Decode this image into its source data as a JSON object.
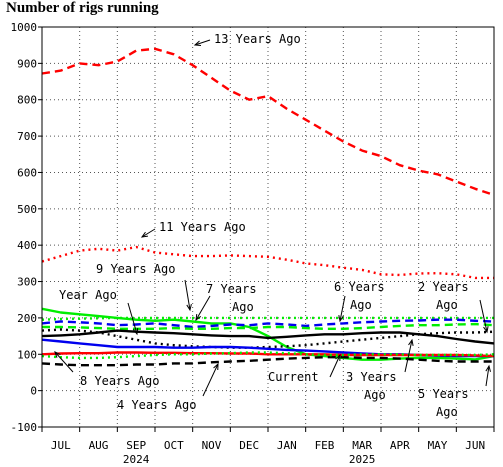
{
  "page_title": "Number of rigs running",
  "chart_data": {
    "type": "line",
    "title": "Number of rigs running",
    "xlabel": "",
    "ylabel": "",
    "ylim": [
      -100,
      1000
    ],
    "yticks": [
      -100,
      0,
      100,
      200,
      300,
      400,
      500,
      600,
      700,
      800,
      900,
      1000
    ],
    "xlim": [
      0,
      12
    ],
    "month_ticks": [
      "JUL",
      "AUG",
      "SEP",
      "OCT",
      "NOV",
      "DEC",
      "JAN",
      "FEB",
      "MAR",
      "APR",
      "MAY",
      "JUN"
    ],
    "year_ticks": [
      {
        "label": "2024",
        "month_index": 2.5
      },
      {
        "label": "2025",
        "month_index": 8.5
      }
    ],
    "grid": true,
    "legend": "none (direct labels)",
    "series": [
      {
        "name": "13 Years Ago",
        "color": "#ff0000",
        "dash": "8,5",
        "width": 2.4,
        "x": [
          0,
          0.5,
          1,
          1.5,
          2,
          2.5,
          3,
          3.5,
          4,
          4.5,
          5,
          5.5,
          6,
          6.5,
          7,
          7.5,
          8,
          8.5,
          9,
          9.5,
          10,
          10.5,
          11,
          11.5,
          12
        ],
        "values": [
          872,
          880,
          900,
          895,
          905,
          935,
          940,
          925,
          895,
          860,
          825,
          800,
          810,
          775,
          745,
          715,
          685,
          660,
          645,
          620,
          605,
          595,
          575,
          555,
          538
        ]
      },
      {
        "name": "11 Years Ago",
        "color": "#ff0000",
        "dash": "2,4",
        "width": 2.4,
        "x": [
          0,
          0.5,
          1,
          1.5,
          2,
          2.5,
          3,
          3.5,
          4,
          4.5,
          5,
          5.5,
          6,
          6.5,
          7,
          7.5,
          8,
          8.5,
          9,
          9.5,
          10,
          10.5,
          11,
          11.5,
          12
        ],
        "values": [
          355,
          370,
          385,
          390,
          385,
          395,
          380,
          375,
          370,
          370,
          372,
          370,
          368,
          360,
          350,
          345,
          338,
          332,
          320,
          318,
          322,
          323,
          320,
          310,
          310
        ]
      },
      {
        "name": "9 Years Ago",
        "color": "#00ee00",
        "dash": "",
        "width": 2.4,
        "x": [
          0,
          0.5,
          1,
          1.5,
          2,
          2.5,
          3,
          3.5,
          4,
          4.5,
          5,
          5.5,
          6,
          6.5,
          7,
          7.5,
          8,
          8.5,
          9,
          9.5,
          10,
          10.5,
          11,
          11.5,
          12
        ],
        "values": [
          225,
          215,
          210,
          205,
          200,
          195,
          192,
          195,
          190,
          185,
          185,
          175,
          150,
          120,
          100,
          95,
          90,
          85,
          85,
          88,
          90,
          90,
          88,
          86,
          95
        ]
      },
      {
        "name": "7 Years Ago",
        "color": "#00ee00",
        "dash": "2,4",
        "width": 2.4,
        "x": [
          0,
          0.5,
          1,
          1.5,
          2,
          2.5,
          3,
          3.5,
          4,
          4.5,
          5,
          5.5,
          6,
          6.5,
          7,
          7.5,
          8,
          8.5,
          9,
          9.5,
          10,
          10.5,
          11,
          11.5,
          12
        ],
        "values": [
          195,
          197,
          198,
          199,
          200,
          200,
          200,
          200,
          200,
          200,
          200,
          200,
          200,
          200,
          200,
          200,
          200,
          200,
          200,
          200,
          200,
          200,
          200,
          200,
          200
        ]
      },
      {
        "name": "6 Years Ago",
        "color": "#0000ee",
        "dash": "8,5",
        "width": 2.4,
        "x": [
          0,
          0.5,
          1,
          1.5,
          2,
          2.5,
          3,
          3.5,
          4,
          4.5,
          5,
          5.5,
          6,
          6.5,
          7,
          7.5,
          8,
          8.5,
          9,
          9.5,
          10,
          10.5,
          11,
          11.5,
          12
        ],
        "values": [
          185,
          190,
          188,
          185,
          180,
          182,
          185,
          180,
          175,
          178,
          182,
          180,
          185,
          182,
          178,
          182,
          185,
          188,
          190,
          192,
          193,
          195,
          195,
          192,
          190
        ]
      },
      {
        "name": "2 Years Ago",
        "color": "#00ee00",
        "dash": "8,5",
        "width": 2.4,
        "x": [
          0,
          0.5,
          1,
          1.5,
          2,
          2.5,
          3,
          3.5,
          4,
          4.5,
          5,
          5.5,
          6,
          6.5,
          7,
          7.5,
          8,
          8.5,
          9,
          9.5,
          10,
          10.5,
          11,
          11.5,
          12
        ],
        "values": [
          175,
          175,
          174,
          172,
          170,
          170,
          170,
          172,
          170,
          170,
          172,
          172,
          175,
          175,
          172,
          170,
          170,
          172,
          175,
          178,
          180,
          180,
          182,
          183,
          180
        ]
      },
      {
        "name": "Year Ago",
        "color": "#000000",
        "dash": "",
        "width": 2.4,
        "x": [
          0,
          0.5,
          1,
          1.5,
          2,
          2.5,
          3,
          3.5,
          4,
          4.5,
          5,
          5.5,
          6,
          6.5,
          7,
          7.5,
          8,
          8.5,
          9,
          9.5,
          10,
          10.5,
          11,
          11.5,
          12
        ],
        "values": [
          150,
          152,
          155,
          160,
          165,
          162,
          160,
          158,
          155,
          152,
          150,
          150,
          145,
          148,
          152,
          155,
          155,
          158,
          160,
          160,
          155,
          150,
          142,
          135,
          130
        ]
      },
      {
        "name": "8 Years Ago",
        "color": "#000000",
        "dash": "2,4",
        "width": 2.4,
        "x": [
          0,
          0.5,
          1,
          1.5,
          2,
          2.5,
          3,
          3.5,
          4,
          4.5,
          5,
          5.5,
          6,
          6.5,
          7,
          7.5,
          8,
          8.5,
          9,
          9.5,
          10,
          10.5,
          11,
          11.5,
          12
        ],
        "values": [
          165,
          168,
          165,
          160,
          150,
          140,
          130,
          125,
          122,
          120,
          118,
          118,
          120,
          122,
          125,
          130,
          135,
          140,
          145,
          150,
          155,
          158,
          160,
          160,
          162
        ]
      },
      {
        "name": "5 Years Ago",
        "color": "#0000ee",
        "dash": "",
        "width": 2.4,
        "x": [
          0,
          0.5,
          1,
          1.5,
          2,
          2.5,
          3,
          3.5,
          4,
          4.5,
          5,
          5.5,
          6,
          6.5,
          7,
          7.5,
          8,
          8.5,
          9,
          9.5,
          10,
          10.5,
          11,
          11.5,
          12
        ],
        "values": [
          140,
          135,
          130,
          125,
          120,
          120,
          120,
          118,
          118,
          120,
          120,
          118,
          115,
          112,
          110,
          108,
          105,
          102,
          100,
          100,
          98,
          96,
          95,
          95,
          95
        ]
      },
      {
        "name": "Current",
        "color": "#ff0000",
        "dash": "",
        "width": 2.4,
        "x": [
          0,
          0.5,
          1,
          1.5,
          2,
          2.5,
          3,
          3.5,
          4,
          4.5,
          5,
          5.5,
          6,
          6.5,
          7,
          7.5,
          8,
          8.5,
          9,
          9.5,
          10,
          10.5,
          11,
          11.5,
          12
        ],
        "values": [
          100,
          102,
          103,
          103,
          105,
          105,
          104,
          104,
          103,
          103,
          102,
          102,
          100,
          100,
          100,
          100,
          98,
          98,
          98,
          98,
          98,
          98,
          98,
          97,
          95
        ]
      },
      {
        "name": "4 Years Ago",
        "color": "#000000",
        "dash": "8,5",
        "width": 2.4,
        "x": [
          0,
          0.5,
          1,
          1.5,
          2,
          2.5,
          3,
          3.5,
          4,
          4.5,
          5,
          5.5,
          6,
          6.5,
          7,
          7.5,
          8,
          8.5,
          9,
          9.5,
          10,
          10.5,
          11,
          11.5,
          12
        ],
        "values": [
          75,
          72,
          70,
          70,
          70,
          72,
          72,
          75,
          75,
          78,
          80,
          82,
          85,
          88,
          90,
          92,
          92,
          90,
          90,
          88,
          85,
          82,
          80,
          80,
          80
        ]
      },
      {
        "name": "3 Years Ago",
        "color": "#00ee00",
        "dash": "2,4",
        "width": 2.4,
        "x": [
          0,
          0.5,
          1,
          1.5,
          2,
          2.5,
          3,
          3.5,
          4,
          4.5,
          5,
          5.5,
          6,
          6.5,
          7,
          7.5,
          8,
          8.5,
          9,
          9.5,
          10,
          10.5,
          11,
          11.5,
          12
        ],
        "values": [
          95,
          92,
          90,
          90,
          92,
          95,
          98,
          100,
          100,
          102,
          103,
          105,
          105,
          103,
          100,
          98,
          98,
          100,
          100,
          100,
          98,
          98,
          98,
          98,
          100
        ]
      }
    ],
    "annotations": [
      {
        "text": "13 Years Ago"
      },
      {
        "text": "11 Years Ago"
      },
      {
        "text": "9 Years Ago"
      },
      {
        "text": "Year Ago"
      },
      {
        "text": "7 Years Ago"
      },
      {
        "text": "6 Years Ago"
      },
      {
        "text": "2 Years Ago"
      },
      {
        "text": "8 Years Ago"
      },
      {
        "text": "4 Years Ago"
      },
      {
        "text": "Current"
      },
      {
        "text": "3 Years Ago"
      },
      {
        "text": "5 Years Ago"
      }
    ]
  }
}
